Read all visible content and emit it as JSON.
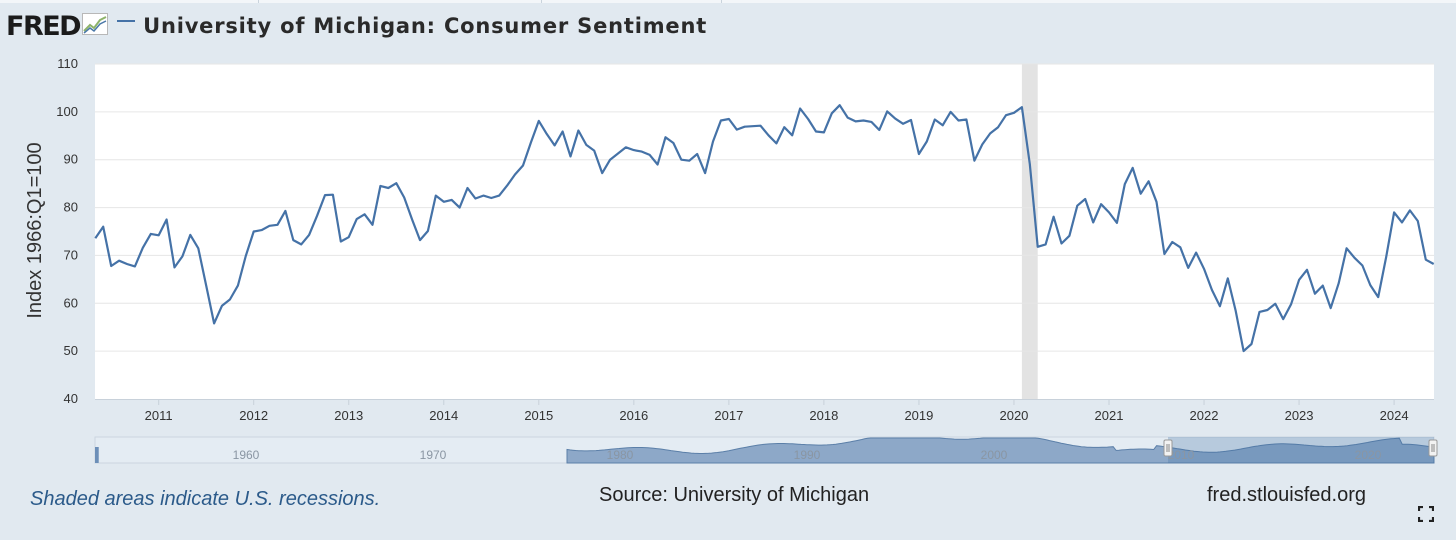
{
  "header": {
    "logo_text": "FRED",
    "title": "University of Michigan: Consumer Sentiment"
  },
  "footer": {
    "recession_note": "Shaded areas indicate U.S. recessions.",
    "source": "Source: University of Michigan",
    "site": "fred.stlouisfed.org"
  },
  "colors": {
    "series": "#4572a7",
    "recession": "#e3e3e3",
    "navigator_fill": "#8da8c8",
    "background": "#e1e9f0"
  },
  "chart_data": {
    "type": "line",
    "title": "University of Michigan: Consumer Sentiment",
    "ylabel": "Index 1966:Q1=100",
    "ylim": [
      40,
      110
    ],
    "yticks": [
      40,
      50,
      60,
      70,
      80,
      90,
      100,
      110
    ],
    "x_range": [
      2010.33,
      2024.42
    ],
    "xticks": [
      "2011",
      "2012",
      "2013",
      "2014",
      "2015",
      "2016",
      "2017",
      "2018",
      "2019",
      "2020",
      "2021",
      "2022",
      "2023",
      "2024"
    ],
    "grid": true,
    "recessions": [
      {
        "start": "2020-02",
        "end": "2020-04"
      }
    ],
    "series": [
      {
        "x_start": "2010-05",
        "frequency": "monthly",
        "values": [
          73.6,
          76.0,
          67.8,
          68.9,
          68.2,
          67.7,
          71.6,
          74.5,
          74.2,
          77.5,
          67.5,
          69.8,
          74.3,
          71.5,
          63.7,
          55.8,
          59.5,
          60.8,
          63.7,
          69.9,
          75.0,
          75.3,
          76.2,
          76.4,
          79.3,
          73.2,
          72.3,
          74.3,
          78.3,
          82.6,
          82.7,
          72.9,
          73.8,
          77.6,
          78.6,
          76.4,
          84.5,
          84.1,
          85.1,
          82.1,
          77.5,
          73.2,
          75.1,
          82.5,
          81.2,
          81.6,
          80.0,
          84.1,
          81.9,
          82.5,
          82.0,
          82.5,
          84.6,
          86.9,
          88.8,
          93.6,
          98.1,
          95.4,
          93.0,
          95.9,
          90.7,
          96.1,
          93.1,
          91.9,
          87.2,
          90.0,
          91.3,
          92.6,
          92.0,
          91.7,
          91.0,
          89.0,
          94.7,
          93.5,
          90.0,
          89.8,
          91.2,
          87.2,
          93.8,
          98.2,
          98.5,
          96.3,
          96.9,
          97.0,
          97.1,
          95.1,
          93.4,
          96.8,
          95.1,
          100.7,
          98.5,
          95.9,
          95.7,
          99.7,
          101.4,
          98.8,
          98.0,
          98.2,
          97.9,
          96.2,
          100.1,
          98.6,
          97.5,
          98.3,
          91.2,
          93.8,
          98.4,
          97.2,
          100.0,
          98.2,
          98.4,
          89.8,
          93.2,
          95.5,
          96.8,
          99.3,
          99.8,
          101.0,
          89.1,
          71.8,
          72.3,
          78.1,
          72.5,
          74.1,
          80.4,
          81.8,
          76.9,
          80.7,
          79.0,
          76.8,
          84.9,
          88.3,
          82.9,
          85.5,
          81.2,
          70.3,
          72.8,
          71.7,
          67.4,
          70.6,
          67.2,
          62.8,
          59.4,
          65.2,
          58.4,
          50.0,
          51.5,
          58.2,
          58.6,
          59.9,
          56.7,
          59.8,
          64.9,
          67.0,
          62.0,
          63.7,
          59.0,
          64.2,
          71.5,
          69.5,
          67.9,
          63.8,
          61.3,
          69.7,
          79.0,
          76.9,
          79.4,
          77.2,
          69.1,
          68.2
        ]
      }
    ]
  },
  "navigator": {
    "tick_labels": [
      "1960",
      "1970",
      "1980",
      "1990",
      "2000",
      "2010",
      "2020"
    ]
  }
}
